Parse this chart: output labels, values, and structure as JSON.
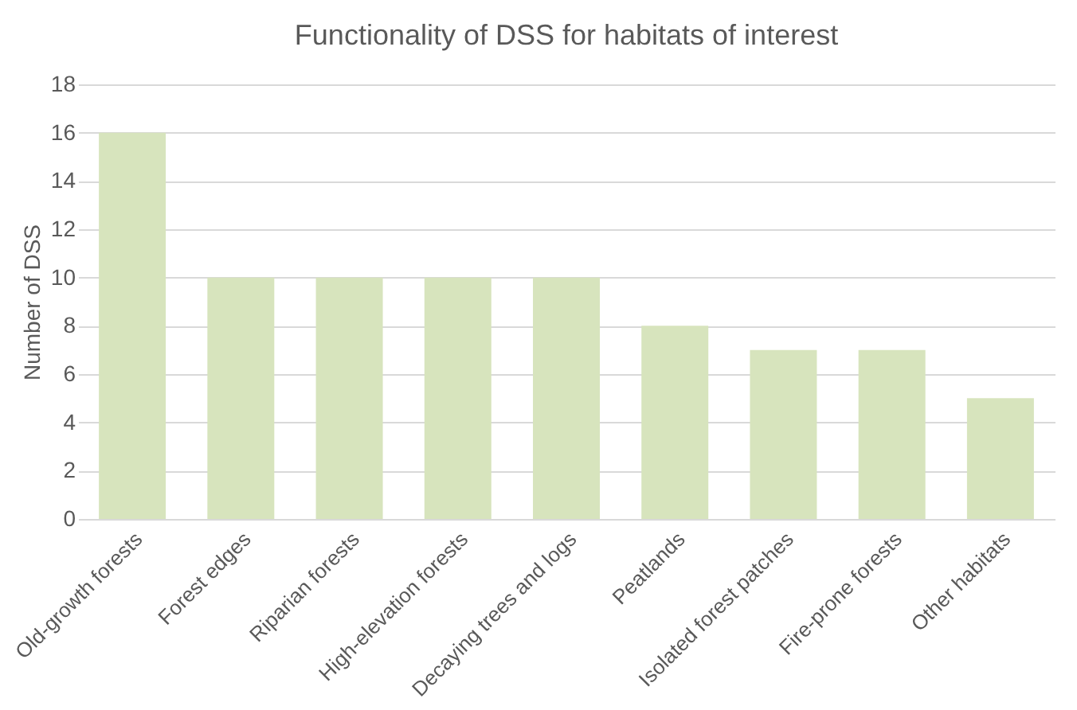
{
  "chart_data": {
    "type": "bar",
    "title": "Functionality of DSS for habitats of interest",
    "ylabel": "Number of DSS",
    "categories": [
      "Old-growth forests",
      "Forest edges",
      "Riparian forests",
      "High-elevation forests",
      "Decaying trees and logs",
      "Peatlands",
      "Isolated forest patches",
      "Fire-prone forests",
      "Other habitats"
    ],
    "values": [
      16,
      10,
      10,
      10,
      10,
      8,
      7,
      7,
      5
    ],
    "color": "#d7e4bd",
    "ylim": [
      0,
      18
    ],
    "yticks": [
      0,
      2,
      4,
      6,
      8,
      10,
      12,
      14,
      16,
      18
    ],
    "grid": "y"
  }
}
